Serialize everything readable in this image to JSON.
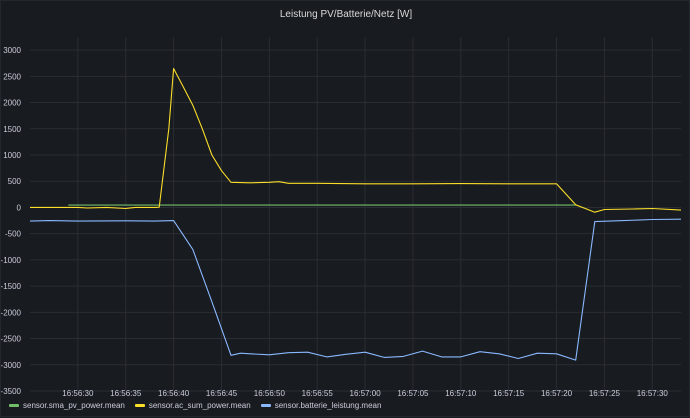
{
  "chart_data": {
    "type": "line",
    "title": "Leistung PV/Batterie/Netz [W]",
    "xlabel": "",
    "ylabel": "",
    "ylim": [
      -3500,
      3250
    ],
    "yticks": [
      3000,
      2500,
      2000,
      1500,
      1000,
      500,
      0,
      -500,
      -1000,
      -1500,
      -2000,
      -2500,
      -3000,
      -3500
    ],
    "xlim": [
      "16:56:25",
      "16:57:33"
    ],
    "xticks": [
      "16:56:30",
      "16:56:35",
      "16:56:40",
      "16:56:45",
      "16:56:50",
      "16:56:55",
      "16:57:00",
      "16:57:05",
      "16:57:10",
      "16:57:15",
      "16:57:20",
      "16:57:25",
      "16:57:30"
    ],
    "grid": true,
    "legend_position": "bottom",
    "series": [
      {
        "name": "sensor.sma_pv_power.mean",
        "color": "#73bf69",
        "points": [
          [
            "16:56:29",
            45
          ],
          [
            "16:56:35",
            45
          ],
          [
            "16:56:40",
            45
          ],
          [
            "16:56:50",
            45
          ],
          [
            "16:57:00",
            45
          ],
          [
            "16:57:10",
            45
          ],
          [
            "16:57:20",
            45
          ],
          [
            "16:57:22",
            45
          ]
        ]
      },
      {
        "name": "sensor.ac_sum_power.mean",
        "color": "#fade2a",
        "points": [
          [
            "16:56:25",
            0
          ],
          [
            "16:56:30",
            0
          ],
          [
            "16:56:31",
            -10
          ],
          [
            "16:56:33",
            0
          ],
          [
            "16:56:35",
            -20
          ],
          [
            "16:56:36",
            0
          ],
          [
            "16:56:38",
            0
          ],
          [
            "16:56:38.5",
            5
          ],
          [
            "16:56:39.5",
            1500
          ],
          [
            "16:56:40",
            2650
          ],
          [
            "16:56:41",
            2300
          ],
          [
            "16:56:42",
            1950
          ],
          [
            "16:56:43",
            1500
          ],
          [
            "16:56:44",
            1000
          ],
          [
            "16:56:45",
            700
          ],
          [
            "16:56:46",
            480
          ],
          [
            "16:56:48",
            470
          ],
          [
            "16:56:50",
            480
          ],
          [
            "16:56:51",
            490
          ],
          [
            "16:56:52",
            460
          ],
          [
            "16:56:55",
            460
          ],
          [
            "16:57:00",
            450
          ],
          [
            "16:57:05",
            450
          ],
          [
            "16:57:10",
            455
          ],
          [
            "16:57:15",
            450
          ],
          [
            "16:57:20",
            450
          ],
          [
            "16:57:22",
            50
          ],
          [
            "16:57:23",
            -20
          ],
          [
            "16:57:24",
            -90
          ],
          [
            "16:57:25",
            -40
          ],
          [
            "16:57:28",
            -30
          ],
          [
            "16:57:30",
            -20
          ],
          [
            "16:57:33",
            -50
          ]
        ]
      },
      {
        "name": "sensor.batterie_leistung.mean",
        "color": "#8ab8ff",
        "points": [
          [
            "16:56:25",
            -260
          ],
          [
            "16:56:27",
            -250
          ],
          [
            "16:56:30",
            -260
          ],
          [
            "16:56:35",
            -255
          ],
          [
            "16:56:38",
            -260
          ],
          [
            "16:56:40",
            -250
          ],
          [
            "16:56:42",
            -800
          ],
          [
            "16:56:44",
            -1800
          ],
          [
            "16:56:46",
            -2820
          ],
          [
            "16:56:47",
            -2780
          ],
          [
            "16:56:48",
            -2790
          ],
          [
            "16:56:50",
            -2810
          ],
          [
            "16:56:52",
            -2770
          ],
          [
            "16:56:54",
            -2760
          ],
          [
            "16:56:56",
            -2850
          ],
          [
            "16:56:58",
            -2800
          ],
          [
            "16:57:00",
            -2760
          ],
          [
            "16:57:02",
            -2860
          ],
          [
            "16:57:04",
            -2840
          ],
          [
            "16:57:06",
            -2740
          ],
          [
            "16:57:08",
            -2850
          ],
          [
            "16:57:10",
            -2850
          ],
          [
            "16:57:12",
            -2750
          ],
          [
            "16:57:14",
            -2790
          ],
          [
            "16:57:16",
            -2880
          ],
          [
            "16:57:18",
            -2780
          ],
          [
            "16:57:20",
            -2790
          ],
          [
            "16:57:22",
            -2910
          ],
          [
            "16:57:24",
            -270
          ],
          [
            "16:57:27",
            -250
          ],
          [
            "16:57:30",
            -230
          ],
          [
            "16:57:33",
            -225
          ]
        ]
      }
    ]
  }
}
